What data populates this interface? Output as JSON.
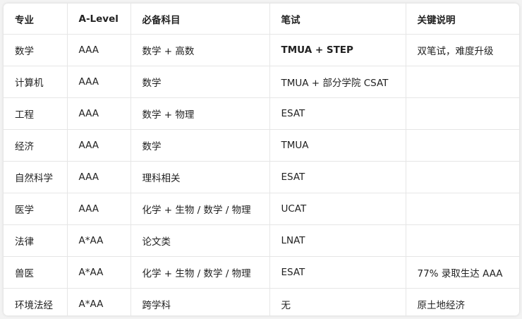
{
  "table": {
    "headers": [
      "专业",
      "A-Level",
      "必备科目",
      "笔试",
      "关键说明"
    ],
    "rows": [
      [
        "数学",
        "AAA",
        "数学 + 高数",
        "TMUA + STEP",
        "双笔试，难度升级"
      ],
      [
        "计算机",
        "AAA",
        "数学",
        "TMUA + 部分学院 CSAT",
        ""
      ],
      [
        "工程",
        "AAA",
        "数学 + 物理",
        "ESAT",
        ""
      ],
      [
        "经济",
        "AAA",
        "数学",
        "TMUA",
        ""
      ],
      [
        "自然科学",
        "AAA",
        "理科相关",
        "ESAT",
        ""
      ],
      [
        "医学",
        "AAA",
        "化学 + 生物 / 数学 / 物理",
        "UCAT",
        ""
      ],
      [
        "法律",
        "A*AA",
        "论文类",
        "LNAT",
        ""
      ],
      [
        "兽医",
        "A*AA",
        "化学 + 生物 / 数学 / 物理",
        "ESAT",
        "77% 录取生达 AAA"
      ],
      [
        "环境法经",
        "A*AA",
        "跨学科",
        "无",
        "原土地经济"
      ]
    ]
  }
}
